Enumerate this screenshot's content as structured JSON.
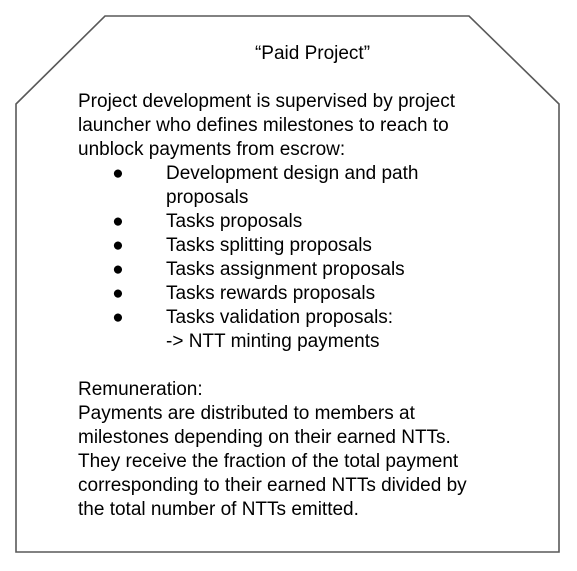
{
  "card": {
    "title": "“Paid Project”",
    "intro_lines": [
      "Project development is supervised by project",
      "launcher who defines milestones to reach to",
      "unblock payments from escrow:"
    ],
    "bullet_symbol": "●",
    "bullets": [
      {
        "lines": [
          "Development design and path",
          "proposals"
        ]
      },
      {
        "lines": [
          "Tasks proposals"
        ]
      },
      {
        "lines": [
          "Tasks splitting proposals"
        ]
      },
      {
        "lines": [
          "Tasks assignment proposals"
        ]
      },
      {
        "lines": [
          "Tasks rewards proposals"
        ]
      },
      {
        "lines": [
          "Tasks validation proposals:",
          "-> NTT minting payments"
        ]
      }
    ],
    "remuneration_heading": "Remuneration:",
    "remuneration_lines": [
      "Payments are distributed to members at",
      "milestones depending on their earned NTTs.",
      "They receive the fraction of the total payment",
      "corresponding to their earned NTTs divided by",
      "the total number of NTTs emitted."
    ]
  }
}
